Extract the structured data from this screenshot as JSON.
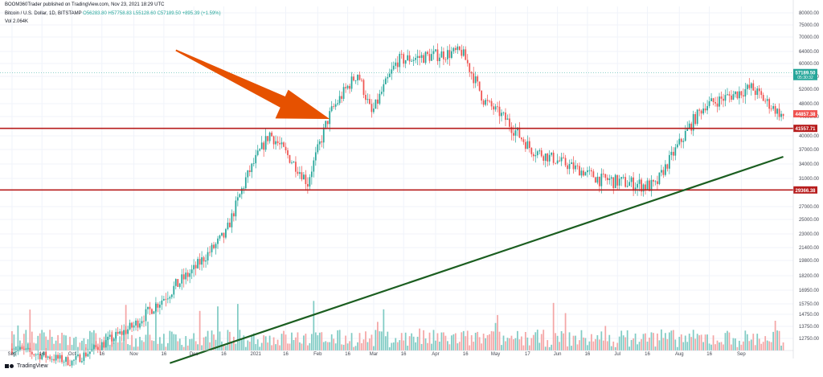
{
  "header": {
    "line1": "BOOM360Trader published on TradingView.com, Nov 23, 2021 18:29 UTC",
    "symbol": "Bitcoin / U.S. Dollar, 1D, BITSTAMP",
    "ohlc": "O56283.80 H57758.83 L55128.60 C57189.50 +895.39 (+1.59%)",
    "volume": "Vol 2.064K"
  },
  "footer": {
    "brand": "TradingView"
  },
  "chart_data": {
    "type": "candlestick",
    "title": "Bitcoin / U.S. Dollar, 1D, BITSTAMP",
    "y_ticks": [
      12750,
      13750,
      14750,
      15750,
      16950,
      18200,
      19800,
      21400,
      23000,
      25000,
      27000,
      31000,
      34000,
      37000,
      40000,
      44000,
      48000,
      52000,
      56000,
      60000,
      64000,
      70000,
      75000,
      80000
    ],
    "y_tick_labels": [
      "12750.00",
      "13750.00",
      "14750.00",
      "15750.00",
      "16950.00",
      "18200.00",
      "19800.00",
      "21400.00",
      "23000.00",
      "25000.00",
      "27000.00",
      "31000.00",
      "34000.00",
      "37000.00",
      "40000.00",
      "44000.00",
      "48000.00",
      "52000.00",
      "56000.00",
      "60000.00",
      "64000.00",
      "70000.00",
      "75000.00",
      "80000.00"
    ],
    "x_ticks": [
      {
        "label": "Sep",
        "date": "2020-09-01"
      },
      {
        "label": "16",
        "date": "2020-09-16"
      },
      {
        "label": "Oct",
        "date": "2020-10-01"
      },
      {
        "label": "16",
        "date": "2020-10-16"
      },
      {
        "label": "Nov",
        "date": "2020-11-01"
      },
      {
        "label": "16",
        "date": "2020-11-16"
      },
      {
        "label": "Dec",
        "date": "2020-12-01"
      },
      {
        "label": "16",
        "date": "2020-12-16"
      },
      {
        "label": "2021",
        "date": "2021-01-01"
      },
      {
        "label": "16",
        "date": "2021-01-16"
      },
      {
        "label": "Feb",
        "date": "2021-02-01"
      },
      {
        "label": "16",
        "date": "2021-02-16"
      },
      {
        "label": "Mar",
        "date": "2021-03-01"
      },
      {
        "label": "16",
        "date": "2021-03-16"
      },
      {
        "label": "Apr",
        "date": "2021-04-01"
      },
      {
        "label": "16",
        "date": "2021-04-16"
      },
      {
        "label": "May",
        "date": "2021-05-01"
      },
      {
        "label": "17",
        "date": "2021-05-17"
      },
      {
        "label": "Jun",
        "date": "2021-06-01"
      },
      {
        "label": "16",
        "date": "2021-06-16"
      },
      {
        "label": "Jul",
        "date": "2021-07-01"
      },
      {
        "label": "16",
        "date": "2021-07-16"
      },
      {
        "label": "Aug",
        "date": "2021-08-01"
      },
      {
        "label": "16",
        "date": "2021-08-16"
      },
      {
        "label": "Sep",
        "date": "2021-09-01"
      }
    ],
    "horizontal_levels": [
      {
        "value": 41557.71,
        "label": "41557.71",
        "color": "#b71c1c"
      },
      {
        "value": 29366.38,
        "label": "29366.38",
        "color": "#b71c1c"
      }
    ],
    "price_badges": [
      {
        "value": 57189.5,
        "label": "57189.50",
        "sublabel": "05:30:32",
        "color": "#26a69a"
      },
      {
        "value": 44857.38,
        "label": "44857.38",
        "color": "#ef5350"
      }
    ],
    "trendline": {
      "color": "#1b5e20",
      "start": {
        "date": "2020-11-19",
        "price": 10700
      },
      "end": {
        "date": "2021-09-22",
        "price": 35500
      }
    },
    "arrow": {
      "color": "#e65100",
      "tail": {
        "date": "2020-11-22",
        "price": 64500
      },
      "tip": {
        "date": "2021-02-07",
        "price": 43500
      }
    },
    "key_candles": [
      {
        "date": "2020-09-01",
        "close": 11900
      },
      {
        "date": "2020-10-01",
        "close": 10800
      },
      {
        "date": "2020-11-01",
        "close": 13800
      },
      {
        "date": "2020-12-01",
        "close": 18800
      },
      {
        "date": "2020-12-17",
        "close": 23000
      },
      {
        "date": "2021-01-08",
        "close": 40500
      },
      {
        "date": "2021-01-27",
        "close": 30400
      },
      {
        "date": "2021-02-08",
        "close": 46000
      },
      {
        "date": "2021-02-21",
        "close": 57000
      },
      {
        "date": "2021-02-28",
        "close": 45000
      },
      {
        "date": "2021-03-13",
        "close": 61000
      },
      {
        "date": "2021-04-14",
        "close": 64000
      },
      {
        "date": "2021-04-25",
        "close": 49000
      },
      {
        "date": "2021-05-19",
        "close": 37000
      },
      {
        "date": "2021-06-22",
        "close": 31000
      },
      {
        "date": "2021-07-20",
        "close": 29800
      },
      {
        "date": "2021-08-14",
        "close": 47500
      },
      {
        "date": "2021-09-06",
        "close": 52500
      },
      {
        "date": "2021-09-22",
        "close": 44000
      }
    ],
    "colors": {
      "up": "#26a69a",
      "down": "#ef5350",
      "up_vol": "#80cbc4",
      "down_vol": "#f4a6a6"
    }
  }
}
